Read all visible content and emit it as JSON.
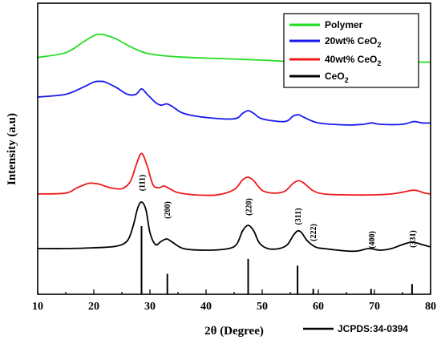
{
  "chart_data": {
    "type": "line",
    "xlabel": "2θ (Degree)",
    "ylabel": "Intensity (a.u)",
    "xlim": [
      10,
      80
    ],
    "xticks": [
      10,
      20,
      30,
      40,
      50,
      60,
      70,
      80
    ],
    "y_ticks_shown": false,
    "grid": false,
    "legend_position": "top-right",
    "series": [
      {
        "name": "Polymer",
        "color": "#22dd22",
        "x": [
          10,
          15,
          18,
          20,
          21,
          22,
          24,
          26,
          28,
          30,
          33,
          36,
          40,
          45,
          50,
          55,
          60,
          65,
          70,
          75,
          80
        ],
        "y": [
          0.02,
          0.055,
          0.13,
          0.18,
          0.19,
          0.185,
          0.155,
          0.11,
          0.07,
          0.045,
          0.03,
          0.022,
          0.015,
          0.008,
          0.0,
          -0.01,
          -0.015,
          -0.015,
          -0.015,
          -0.015,
          -0.015
        ]
      },
      {
        "name": "20wt% CeO2",
        "color": "#1a1aee",
        "x": [
          10,
          15,
          18,
          20,
          21,
          22,
          24,
          26,
          27.5,
          28.5,
          29.5,
          31,
          32,
          33,
          34,
          36,
          40,
          45,
          46.5,
          47.5,
          48.5,
          50,
          54,
          55.5,
          56.5,
          57.5,
          60,
          65,
          68,
          69.5,
          71,
          75,
          77,
          78.5,
          80
        ],
        "y": [
          0.2,
          0.22,
          0.27,
          0.31,
          0.315,
          0.31,
          0.27,
          0.22,
          0.22,
          0.26,
          0.22,
          0.16,
          0.14,
          0.15,
          0.13,
          0.08,
          0.05,
          0.04,
          0.08,
          0.1,
          0.08,
          0.04,
          0.02,
          0.06,
          0.07,
          0.05,
          0.01,
          -0.005,
          0.0,
          0.01,
          0.0,
          0.0,
          0.02,
          0.01,
          0.01
        ]
      },
      {
        "name": "40wt% CeO2",
        "color": "#ee1a1a",
        "x": [
          10,
          15,
          17,
          19,
          20,
          21,
          23,
          25,
          26.5,
          27.5,
          28.5,
          29.5,
          30.5,
          31.5,
          32.5,
          33.5,
          35,
          38,
          42,
          45,
          46.5,
          47.5,
          48.5,
          50,
          52,
          54,
          55.5,
          56.5,
          57.5,
          59,
          61,
          65,
          70,
          73,
          75,
          76.5,
          77.5,
          79,
          80
        ],
        "y": [
          0.01,
          0.02,
          0.08,
          0.13,
          0.13,
          0.12,
          0.08,
          0.07,
          0.15,
          0.33,
          0.47,
          0.33,
          0.12,
          0.08,
          0.1,
          0.07,
          0.025,
          0.0,
          0.0,
          0.06,
          0.17,
          0.2,
          0.16,
          0.05,
          0.02,
          0.04,
          0.13,
          0.16,
          0.13,
          0.05,
          0.01,
          0.0,
          0.0,
          0.01,
          0.03,
          0.05,
          0.05,
          0.02,
          0.01
        ]
      },
      {
        "name": "CeO2",
        "color": "#000000",
        "x": [
          10,
          15,
          20,
          24,
          26,
          27,
          27.8,
          28.5,
          29.3,
          30,
          31,
          32,
          33,
          34,
          36,
          40,
          44,
          45.5,
          46.5,
          47.5,
          48.5,
          49.5,
          51,
          53,
          54.5,
          55.5,
          56.3,
          57,
          58,
          59.5,
          61,
          65,
          67,
          69,
          71,
          73,
          75,
          76.5,
          77.5,
          79,
          80
        ],
        "y": [
          0.0,
          0.0,
          0.01,
          0.03,
          0.1,
          0.28,
          0.5,
          0.58,
          0.48,
          0.2,
          0.05,
          0.09,
          0.12,
          0.08,
          0.0,
          -0.02,
          0.0,
          0.06,
          0.22,
          0.29,
          0.22,
          0.07,
          0.0,
          0.0,
          0.05,
          0.16,
          0.22,
          0.2,
          0.1,
          0.02,
          0.0,
          -0.03,
          -0.03,
          0.0,
          -0.02,
          0.0,
          0.05,
          0.08,
          0.07,
          0.04,
          0.02
        ]
      }
    ],
    "peak_labels": [
      {
        "text": "(111)",
        "x": 28.5
      },
      {
        "text": "(200)",
        "x": 33.0
      },
      {
        "text": "(220)",
        "x": 47.5
      },
      {
        "text": "(311)",
        "x": 56.3
      },
      {
        "text": "(222)",
        "x": 59.0
      },
      {
        "text": "(400)",
        "x": 69.4
      },
      {
        "text": "(331)",
        "x": 76.7
      }
    ],
    "reference": {
      "name": "JCPDS:34-0394",
      "positions": [
        28.5,
        33.1,
        47.5,
        56.3,
        59.1,
        69.4,
        76.7
      ],
      "intensities": [
        100,
        30,
        52,
        42,
        8,
        8,
        15
      ]
    }
  }
}
